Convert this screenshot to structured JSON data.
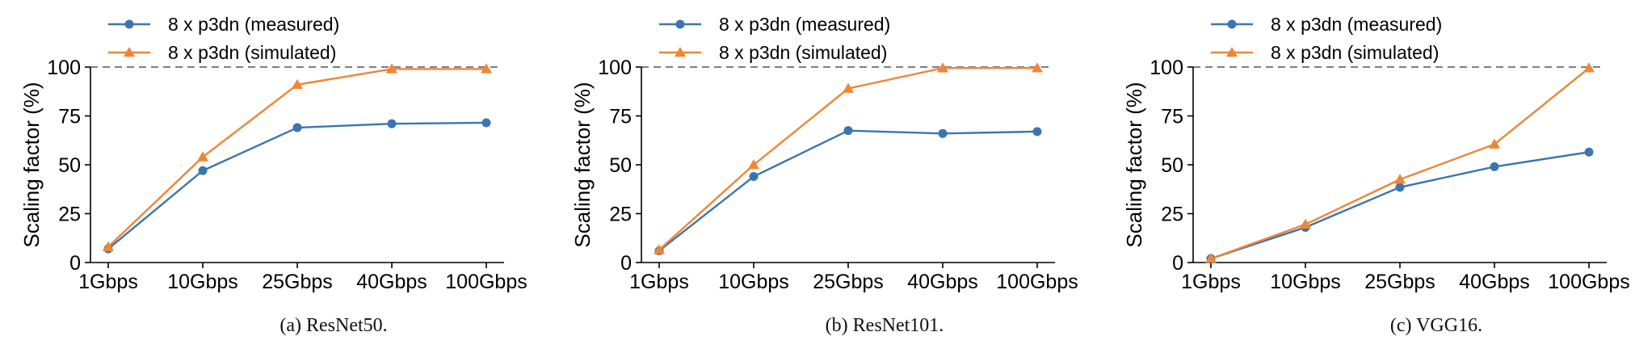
{
  "colors": {
    "measured": "#3b75af",
    "simulated": "#ef8636",
    "ref_line": "#555555",
    "axis": "#000000"
  },
  "chart_data": [
    {
      "type": "line",
      "caption": "(a) ResNet50.",
      "categories": [
        "1Gbps",
        "10Gbps",
        "25Gbps",
        "40Gbps",
        "100Gbps"
      ],
      "ylabel": "Scaling factor (%)",
      "ylim": [
        0,
        100
      ],
      "yticks": [
        0,
        25,
        50,
        75,
        100
      ],
      "reference_line": 100,
      "legend_position": "top-left",
      "series": [
        {
          "name": "8 x p3dn (measured)",
          "marker": "circle",
          "values": [
            7,
            47,
            69,
            71,
            71.5
          ]
        },
        {
          "name": "8 x p3dn (simulated)",
          "marker": "triangle",
          "values": [
            8,
            54,
            91,
            99,
            99
          ]
        }
      ]
    },
    {
      "type": "line",
      "caption": "(b) ResNet101.",
      "categories": [
        "1Gbps",
        "10Gbps",
        "25Gbps",
        "40Gbps",
        "100Gbps"
      ],
      "ylabel": "Scaling factor (%)",
      "ylim": [
        0,
        100
      ],
      "yticks": [
        0,
        25,
        50,
        75,
        100
      ],
      "reference_line": 100,
      "legend_position": "top-left",
      "series": [
        {
          "name": "8 x p3dn (measured)",
          "marker": "circle",
          "values": [
            6,
            44,
            67.5,
            66,
            67
          ]
        },
        {
          "name": "8 x p3dn (simulated)",
          "marker": "triangle",
          "values": [
            6.5,
            50,
            89,
            99.5,
            99.5
          ]
        }
      ]
    },
    {
      "type": "line",
      "caption": "(c) VGG16.",
      "categories": [
        "1Gbps",
        "10Gbps",
        "25Gbps",
        "40Gbps",
        "100Gbps"
      ],
      "ylabel": "Scaling factor (%)",
      "ylim": [
        0,
        100
      ],
      "yticks": [
        0,
        25,
        50,
        75,
        100
      ],
      "reference_line": 100,
      "legend_position": "top-left",
      "series": [
        {
          "name": "8 x p3dn (measured)",
          "marker": "circle",
          "values": [
            2,
            18,
            38.5,
            49,
            56.5
          ]
        },
        {
          "name": "8 x p3dn (simulated)",
          "marker": "triangle",
          "values": [
            2,
            19.5,
            42.5,
            60.5,
            99.5
          ]
        }
      ]
    }
  ]
}
